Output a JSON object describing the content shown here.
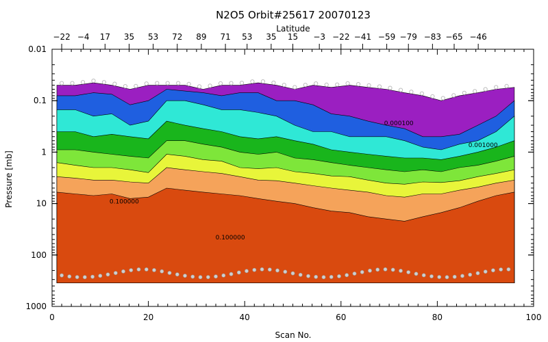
{
  "chart_data": {
    "type": "heatmap",
    "title": "N2O5 Orbit#25617 20070123",
    "xlabel": "Scan No.",
    "ylabel": "Pressure [mb]",
    "top_axis_label": "Latitude",
    "xlim": [
      0,
      100
    ],
    "ylim": [
      1000,
      0.01
    ],
    "y_scale": "log",
    "x_ticks": [
      0,
      20,
      40,
      60,
      80,
      100
    ],
    "x_tick_labels": [
      "0",
      "20",
      "40",
      "60",
      "80",
      "100"
    ],
    "y_ticks": [
      0.01,
      0.1,
      1,
      10,
      100,
      1000
    ],
    "y_tick_labels": [
      "0.01",
      "0.1",
      "1",
      "10",
      "100",
      "1000"
    ],
    "latitude_ticks": [
      {
        "scan": 2,
        "label": "−22"
      },
      {
        "scan": 6.5,
        "label": "−4"
      },
      {
        "scan": 11,
        "label": "17"
      },
      {
        "scan": 16,
        "label": "35"
      },
      {
        "scan": 21,
        "label": "53"
      },
      {
        "scan": 26,
        "label": "72"
      },
      {
        "scan": 31,
        "label": "89"
      },
      {
        "scan": 36,
        "label": "71"
      },
      {
        "scan": 40.5,
        "label": "53"
      },
      {
        "scan": 45.5,
        "label": "35"
      },
      {
        "scan": 50,
        "label": "15"
      },
      {
        "scan": 55.5,
        "label": "−3"
      },
      {
        "scan": 60,
        "label": "−22"
      },
      {
        "scan": 64.5,
        "label": "−41"
      },
      {
        "scan": 69.5,
        "label": "−59"
      },
      {
        "scan": 74,
        "label": "−79"
      },
      {
        "scan": 79,
        "label": "−83"
      },
      {
        "scan": 83.5,
        "label": "−65"
      },
      {
        "scan": 88.5,
        "label": "−46"
      }
    ],
    "contour_bands": [
      {
        "level": 1,
        "color": "#9b1fc1",
        "top_pressure": [
          0.05,
          0.05,
          0.045,
          0.05,
          0.06,
          0.05,
          0.05,
          0.05,
          0.06,
          0.05,
          0.05,
          0.045,
          0.05,
          0.06,
          0.05,
          0.055,
          0.05,
          0.055,
          0.06,
          0.07,
          0.08,
          0.1,
          0.08,
          0.07,
          0.06,
          0.055
        ]
      },
      {
        "level": 2,
        "color": "#1f5fe0",
        "top_pressure": [
          0.08,
          0.08,
          0.07,
          0.075,
          0.12,
          0.1,
          0.06,
          0.065,
          0.07,
          0.08,
          0.07,
          0.07,
          0.1,
          0.1,
          0.12,
          0.18,
          0.2,
          0.25,
          0.3,
          0.35,
          0.5,
          0.5,
          0.45,
          0.3,
          0.2,
          0.1
        ]
      },
      {
        "level": 3,
        "color": "#2fe8d6",
        "top_pressure": [
          0.15,
          0.15,
          0.2,
          0.18,
          0.3,
          0.25,
          0.1,
          0.1,
          0.12,
          0.15,
          0.15,
          0.17,
          0.2,
          0.3,
          0.4,
          0.4,
          0.5,
          0.5,
          0.5,
          0.6,
          0.8,
          0.9,
          0.7,
          0.6,
          0.4,
          0.2
        ]
      },
      {
        "level": 4,
        "color": "#19b51c",
        "top_pressure": [
          0.4,
          0.4,
          0.5,
          0.45,
          0.5,
          0.55,
          0.25,
          0.3,
          0.35,
          0.4,
          0.5,
          0.55,
          0.5,
          0.6,
          0.7,
          0.9,
          1.0,
          1.1,
          1.2,
          1.3,
          1.3,
          1.4,
          1.2,
          1.0,
          0.8,
          0.6
        ]
      },
      {
        "level": 5,
        "color": "#7ee63a",
        "top_pressure": [
          0.9,
          0.9,
          1.0,
          1.1,
          1.2,
          1.3,
          0.6,
          0.6,
          0.7,
          0.8,
          1.0,
          1.1,
          1.0,
          1.3,
          1.4,
          1.6,
          1.8,
          2.0,
          2.2,
          2.4,
          2.2,
          2.4,
          2.0,
          1.8,
          1.5,
          1.2
        ]
      },
      {
        "level": 6,
        "color": "#e8f53a",
        "top_pressure": [
          1.6,
          1.8,
          2.0,
          2.0,
          2.2,
          2.5,
          1.1,
          1.2,
          1.4,
          1.5,
          2.0,
          2.1,
          2.0,
          2.4,
          2.6,
          2.9,
          3.0,
          3.5,
          4.0,
          4.2,
          3.8,
          3.9,
          3.6,
          3.0,
          2.6,
          2.2
        ]
      },
      {
        "level": 7,
        "color": "#f5a35a",
        "top_pressure": [
          3.0,
          3.2,
          3.5,
          3.5,
          3.8,
          4.0,
          2.0,
          2.2,
          2.4,
          2.6,
          3.0,
          3.5,
          3.6,
          4.0,
          4.5,
          5.0,
          5.5,
          6.0,
          7.0,
          7.5,
          6.5,
          6.5,
          5.5,
          4.8,
          4.0,
          3.5
        ]
      },
      {
        "level": 8,
        "color": "#d94a0f",
        "top_pressure": [
          6.0,
          6.5,
          7.0,
          6.5,
          8.0,
          7.5,
          5.0,
          5.5,
          6.0,
          6.5,
          7.0,
          8.0,
          9.0,
          10.0,
          12.0,
          14.0,
          15.0,
          18.0,
          20.0,
          22.0,
          18.0,
          15.0,
          12.0,
          9.0,
          7.0,
          6.0
        ]
      }
    ],
    "contour_labels": [
      {
        "text": "0.100000",
        "scan": 37,
        "pressure": 50
      },
      {
        "text": "0.001000",
        "scan": 89.5,
        "pressure": 0.8
      },
      {
        "text": "0.000100",
        "scan": 72,
        "pressure": 0.3
      },
      {
        "text": "0.100000",
        "scan": 15,
        "pressure": 10
      }
    ]
  }
}
